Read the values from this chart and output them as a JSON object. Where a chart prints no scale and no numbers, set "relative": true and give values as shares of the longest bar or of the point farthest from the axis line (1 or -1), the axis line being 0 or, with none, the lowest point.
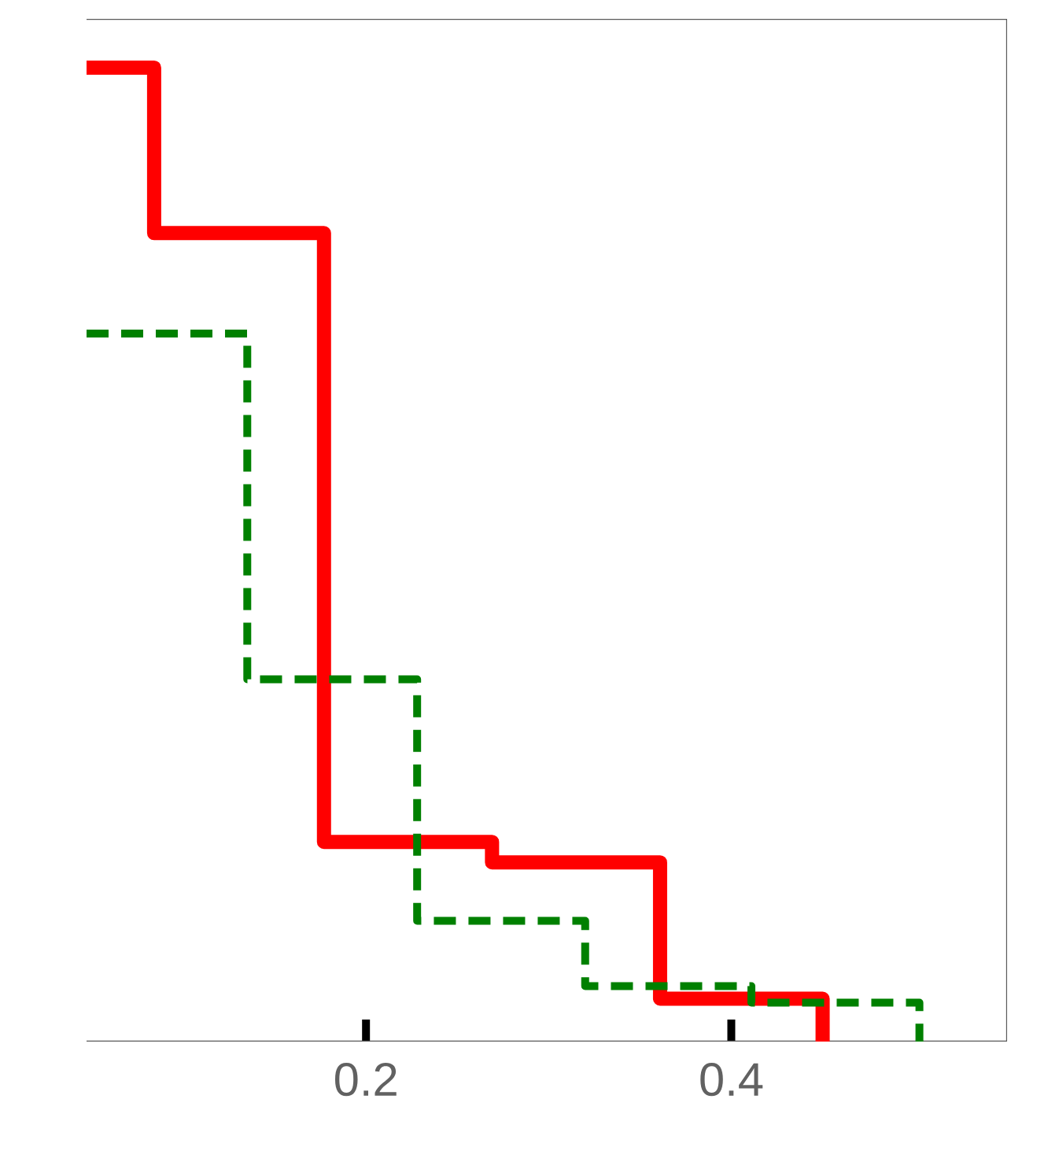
{
  "chart_data": {
    "type": "step",
    "relative": true,
    "xlim": [
      0.047,
      0.551
    ],
    "xticks": [
      0.2,
      0.4
    ],
    "tick_labels": "x",
    "series": [
      {
        "color": "#ff0000",
        "line_style": "solid",
        "x": [
          0.047,
          0.084,
          0.177,
          0.269,
          0.361,
          0.45
        ],
        "values": [
          1,
          0.83,
          0.205,
          0.184,
          0.044,
          0
        ]
      },
      {
        "color": "#008000",
        "line_style": "dashed",
        "x": [
          0.047,
          0.135,
          0.228,
          0.32,
          0.411,
          0.503
        ],
        "values": [
          0.727,
          0.372,
          0.124,
          0.057,
          0.04,
          0
        ]
      }
    ]
  }
}
